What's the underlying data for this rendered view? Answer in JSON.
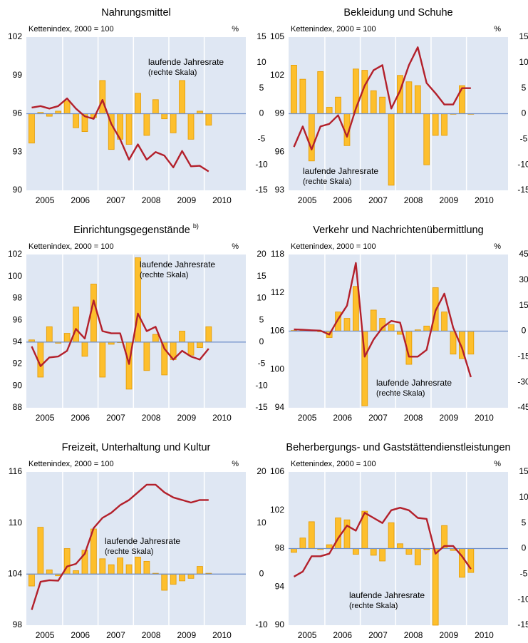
{
  "chart_data": [
    {
      "type": "combo",
      "title": "Nahrungsmittel",
      "subtitle": "Kettenindex, 2000 = 100",
      "y2_label": "%",
      "annotation": [
        "laufende Jahresrate",
        "(rechte Skala)"
      ],
      "categories": [
        "2005",
        null,
        null,
        null,
        "2006",
        null,
        null,
        null,
        "2007",
        null,
        null,
        null,
        "2008",
        null,
        null,
        null,
        "2009",
        null,
        null,
        null,
        "2010",
        null,
        null,
        null
      ],
      "ylim": [
        90,
        102
      ],
      "yticks": [
        90,
        93,
        96,
        99,
        102
      ],
      "y2lim": [
        -15,
        15
      ],
      "y2ticks": [
        -15,
        -10,
        -5,
        0,
        5,
        10,
        15
      ],
      "series": [
        {
          "color": "#fdbf2d",
          "values": [
            93.7,
            96.1,
            95.8,
            96.2,
            97.0,
            94.9,
            94.6,
            95.7,
            98.6,
            93.2,
            94.0,
            93.6,
            97.6,
            94.3,
            97.1,
            95.6,
            94.5,
            98.6,
            94.0,
            96.2,
            95.1,
            null,
            null,
            null
          ]
        },
        {
          "color": "#b3202b",
          "axis": "y2",
          "values": [
            1.2,
            1.5,
            1.0,
            1.5,
            3.0,
            1.0,
            -0.5,
            -1.0,
            2.7,
            -2.0,
            -5.0,
            -9.0,
            -6.0,
            -9.0,
            -7.5,
            -8.2,
            -10.5,
            -7.3,
            -10.3,
            -10.2,
            -11.3,
            null,
            null,
            null
          ]
        }
      ]
    },
    {
      "type": "combo",
      "title": "Bekleidung und Schuhe",
      "subtitle": "Kettenindex, 2000 = 100",
      "y2_label": "%",
      "annotation": [
        "laufende Jahresrate",
        "(rechte Skala)"
      ],
      "categories": [
        "2005",
        null,
        null,
        null,
        "2006",
        null,
        null,
        null,
        "2007",
        null,
        null,
        null,
        "2008",
        null,
        null,
        null,
        "2009",
        null,
        null,
        null,
        "2010",
        null,
        null,
        null
      ],
      "ylim": [
        93,
        105
      ],
      "yticks": [
        93,
        96,
        99,
        102,
        105
      ],
      "y2lim": [
        -15,
        15
      ],
      "y2ticks": [
        -15,
        -10,
        -5,
        0,
        5,
        10,
        15
      ],
      "series": [
        {
          "color": "#fdbf2d",
          "values": [
            102.8,
            101.7,
            95.3,
            102.3,
            99.5,
            100.3,
            96.5,
            102.5,
            102.4,
            100.8,
            100.3,
            93.4,
            102.0,
            101.5,
            101.2,
            95.0,
            97.3,
            97.3,
            99.0,
            101.2,
            99.0,
            null,
            null,
            null
          ]
        },
        {
          "color": "#b3202b",
          "axis": "y2",
          "values": [
            -6.5,
            -2.5,
            -7.0,
            -2.5,
            -2.0,
            -0.3,
            -4.5,
            1.0,
            5.5,
            8.5,
            9.5,
            1.0,
            4.5,
            9.5,
            13.0,
            6.0,
            4.0,
            1.8,
            1.8,
            5.0,
            5.0,
            null,
            null,
            null
          ]
        }
      ]
    },
    {
      "type": "combo",
      "title": "Einrichtungsgegenstände",
      "title_note": "b)",
      "subtitle": "Kettenindex, 2000 = 100",
      "y2_label": "%",
      "annotation": [
        "laufende Jahresrate",
        "(rechte Skala)"
      ],
      "categories": [
        "2005",
        null,
        null,
        null,
        "2006",
        null,
        null,
        null,
        "2007",
        null,
        null,
        null,
        "2008",
        null,
        null,
        null,
        "2009",
        null,
        null,
        null,
        "2010",
        null,
        null,
        null
      ],
      "ylim": [
        88,
        102
      ],
      "yticks": [
        88,
        90,
        92,
        94,
        96,
        98,
        100,
        102
      ],
      "y2lim": [
        -15,
        20
      ],
      "y2ticks": [
        -15,
        -10,
        -5,
        0,
        5,
        10,
        15,
        20
      ],
      "series": [
        {
          "color": "#fdbf2d",
          "values": [
            94.2,
            90.8,
            95.4,
            93.9,
            94.8,
            97.2,
            92.7,
            99.3,
            90.8,
            93.8,
            94.0,
            89.7,
            101.7,
            91.4,
            94.7,
            91.0,
            92.4,
            95.0,
            92.8,
            93.5,
            95.4,
            null,
            null,
            null
          ]
        },
        {
          "color": "#b3202b",
          "axis": "y2",
          "values": [
            -1.0,
            -5.5,
            -3.5,
            -3.3,
            -2.0,
            3.0,
            0.8,
            9.5,
            2.5,
            2.0,
            2.0,
            -5.0,
            6.5,
            2.5,
            3.5,
            -1.5,
            -4.0,
            -2.0,
            -3.3,
            -4.0,
            -1.5,
            null,
            null,
            null
          ]
        }
      ]
    },
    {
      "type": "combo",
      "title": "Verkehr und Nachrichtenübermittlung",
      "subtitle": "Kettenindex, 2000 = 100",
      "y2_label": "%",
      "annotation": [
        "laufende Jahresrate",
        "(rechte Skala)"
      ],
      "categories": [
        "2005",
        null,
        null,
        null,
        "2006",
        null,
        null,
        null,
        "2007",
        null,
        null,
        null,
        "2008",
        null,
        null,
        null,
        "2009",
        null,
        null,
        null,
        "2010",
        null,
        null,
        null
      ],
      "ylim": [
        94,
        118
      ],
      "yticks": [
        94,
        100,
        106,
        112,
        118
      ],
      "y2lim": [
        -45,
        45
      ],
      "y2ticks": [
        -45,
        -30,
        -15,
        0,
        15,
        30,
        45
      ],
      "series": [
        {
          "color": "#fdbf2d",
          "values": [
            106.1,
            106.1,
            106.1,
            105.9,
            105.0,
            109.0,
            108.0,
            113.0,
            94.3,
            109.3,
            108.0,
            107.0,
            105.5,
            100.8,
            106.2,
            106.8,
            112.8,
            109.0,
            102.4,
            101.7,
            102.4,
            null,
            null,
            null
          ]
        },
        {
          "color": "#b3202b",
          "axis": "y2",
          "values": [
            1.0,
            0.8,
            0.5,
            0.3,
            -2.0,
            7.0,
            15.0,
            40.0,
            -15.0,
            -5.0,
            2.0,
            6.0,
            5.0,
            -15.0,
            -15.0,
            -11.0,
            12.0,
            22.0,
            2.0,
            -10.0,
            -27.0,
            null,
            null,
            null
          ]
        }
      ]
    },
    {
      "type": "combo",
      "title": "Freizeit, Unterhaltung und Kultur",
      "subtitle": "Kettenindex, 2000 = 100",
      "y2_label": "%",
      "annotation": [
        "laufende Jahresrate",
        "(rechte Skala)"
      ],
      "categories": [
        "2005",
        null,
        null,
        null,
        "2006",
        null,
        null,
        null,
        "2007",
        null,
        null,
        null,
        "2008",
        null,
        null,
        null,
        "2009",
        null,
        null,
        null,
        "2010",
        null,
        null,
        null
      ],
      "ylim": [
        98,
        116
      ],
      "yticks": [
        98,
        104,
        110,
        116
      ],
      "y2lim": [
        -10,
        20
      ],
      "y2ticks": [
        -10,
        0,
        10,
        20
      ],
      "series": [
        {
          "color": "#fdbf2d",
          "values": [
            102.6,
            109.5,
            104.5,
            103.8,
            107.0,
            104.4,
            106.8,
            109.3,
            105.8,
            105.1,
            105.9,
            105.1,
            106.0,
            105.5,
            104.1,
            102.1,
            102.8,
            103.2,
            103.5,
            104.9,
            104.1,
            null,
            null,
            null
          ]
        },
        {
          "color": "#b3202b",
          "axis": "y2",
          "values": [
            -7.0,
            -1.5,
            -1.2,
            -1.3,
            1.5,
            2.0,
            4.0,
            9.0,
            11.0,
            12.0,
            13.5,
            14.5,
            16.0,
            17.5,
            17.5,
            16.0,
            15.0,
            14.5,
            14.0,
            14.5,
            14.5,
            null,
            null,
            null
          ]
        }
      ]
    },
    {
      "type": "combo",
      "title": "Beherbergungs- und Gaststättendienstleistungen",
      "subtitle": "Kettenindex, 2000 = 100",
      "y2_label": "%",
      "annotation": [
        "laufende Jahresrate",
        "(rechte Skala)"
      ],
      "categories": [
        "2005",
        null,
        null,
        null,
        "2006",
        null,
        null,
        null,
        "2007",
        null,
        null,
        null,
        "2008",
        null,
        null,
        null,
        "2009",
        null,
        null,
        null,
        "2010",
        null,
        null,
        null
      ],
      "ylim": [
        90,
        106
      ],
      "yticks": [
        90,
        94,
        98,
        102,
        106
      ],
      "y2lim": [
        -15,
        15
      ],
      "y2ticks": [
        -15,
        -10,
        -5,
        0,
        5,
        10,
        15
      ],
      "series": [
        {
          "color": "#fdbf2d",
          "values": [
            97.6,
            99.1,
            100.8,
            97.9,
            98.4,
            101.2,
            101.0,
            97.4,
            101.9,
            97.3,
            96.7,
            100.7,
            98.5,
            97.4,
            96.3,
            97.9,
            90.0,
            100.4,
            97.8,
            95.0,
            95.5,
            null,
            null,
            null
          ]
        },
        {
          "color": "#b3202b",
          "axis": "y2",
          "values": [
            -5.5,
            -4.5,
            -1.5,
            -1.5,
            -1.0,
            2.0,
            4.5,
            3.5,
            7.0,
            6.0,
            5.0,
            7.5,
            8.0,
            7.5,
            6.0,
            5.8,
            -1.0,
            0.5,
            0.5,
            -1.5,
            -4.0,
            null,
            null,
            null
          ]
        }
      ]
    }
  ]
}
